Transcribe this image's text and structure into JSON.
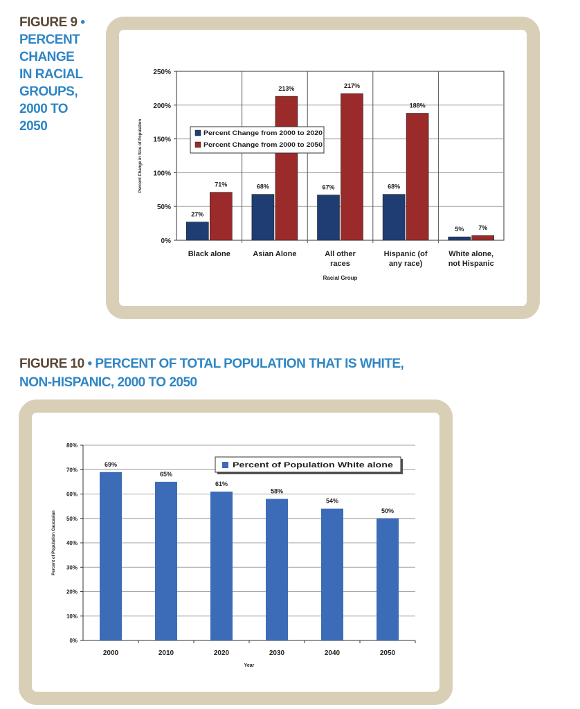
{
  "figure9": {
    "number": "FIGURE 9",
    "bullet": "•",
    "title_lines": [
      "PERCENT",
      "CHANGE",
      "IN RACIAL",
      "GROUPS,",
      "2000 TO",
      "2050"
    ]
  },
  "figure10": {
    "number": "FIGURE 10",
    "bullet": "•",
    "title_lines": [
      "PERCENT OF TOTAL POPULATION THAT IS WHITE,",
      "NON-HISPANIC, 2000 TO 2050"
    ]
  },
  "colors": {
    "frame": "#d9cfb6",
    "heading_number": "#5a4636",
    "heading_title": "#2f86c5",
    "series_2020": "#1f3d73",
    "series_2050": "#9b2a2a",
    "series_white": "#3c6cb8"
  },
  "chart_data": [
    {
      "type": "bar",
      "title": "",
      "xlabel": "Racial Group",
      "ylabel": "Percent Change in Size of Population",
      "ylim": [
        0,
        250
      ],
      "yticks": [
        "0%",
        "50%",
        "100%",
        "150%",
        "200%",
        "250%"
      ],
      "categories": [
        [
          "Black alone"
        ],
        [
          "Asian Alone"
        ],
        [
          "All other",
          "races"
        ],
        [
          "Hispanic (of",
          "any race)"
        ],
        [
          "White alone,",
          "not Hispanic"
        ]
      ],
      "series": [
        {
          "name": "Percent Change from 2000 to 2020",
          "values": [
            27,
            68,
            67,
            68,
            5
          ],
          "labels": [
            "27%",
            "68%",
            "67%",
            "68%",
            "5%"
          ]
        },
        {
          "name": "Percent Change from 2000 to 2050",
          "values": [
            71,
            213,
            217,
            188,
            7
          ],
          "labels": [
            "71%",
            "213%",
            "217%",
            "188%",
            "7%"
          ]
        }
      ],
      "legend": "upper-left",
      "grid": true
    },
    {
      "type": "bar",
      "title": "",
      "xlabel": "Year",
      "ylabel": "Percent of Population Caucasian",
      "ylim": [
        0,
        80
      ],
      "yticks": [
        "0%",
        "10%",
        "20%",
        "30%",
        "40%",
        "50%",
        "60%",
        "70%",
        "80%"
      ],
      "categories": [
        "2000",
        "2010",
        "2020",
        "2030",
        "2040",
        "2050"
      ],
      "series": [
        {
          "name": "Percent of Population White alone",
          "values": [
            69,
            65,
            61,
            58,
            54,
            50
          ],
          "labels": [
            "69%",
            "65%",
            "61%",
            "58%",
            "54%",
            "50%"
          ]
        }
      ],
      "legend": "top-right",
      "grid": true
    }
  ]
}
